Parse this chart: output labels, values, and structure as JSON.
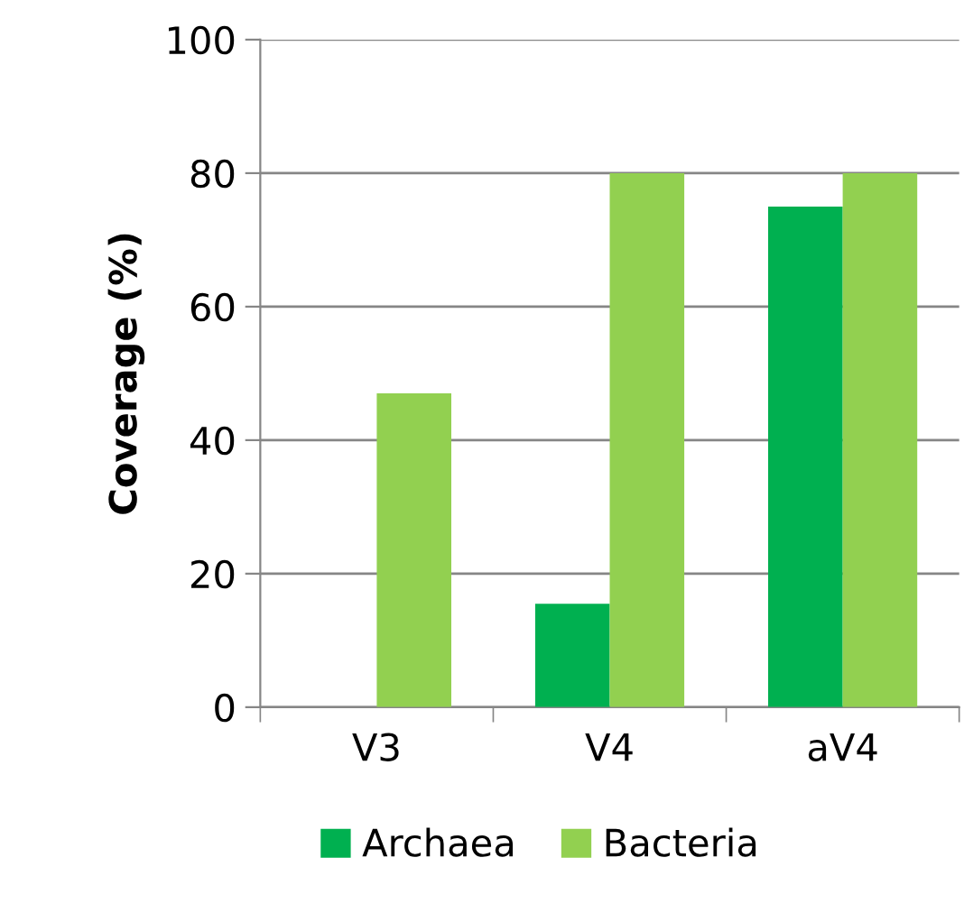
{
  "chart_data": {
    "type": "bar",
    "ylabel": "Coverage (%)",
    "categories": [
      "V3",
      "V4",
      "aV4"
    ],
    "series": [
      {
        "name": "Archaea",
        "color": "#00b050",
        "values": [
          0,
          15.5,
          75
        ]
      },
      {
        "name": "Bacteria",
        "color": "#92d050",
        "values": [
          47,
          80,
          80
        ]
      }
    ],
    "ylim": [
      0,
      100
    ],
    "yticks": [
      0,
      20,
      40,
      60,
      80,
      100
    ],
    "grid": "y",
    "legend": "bottom"
  }
}
